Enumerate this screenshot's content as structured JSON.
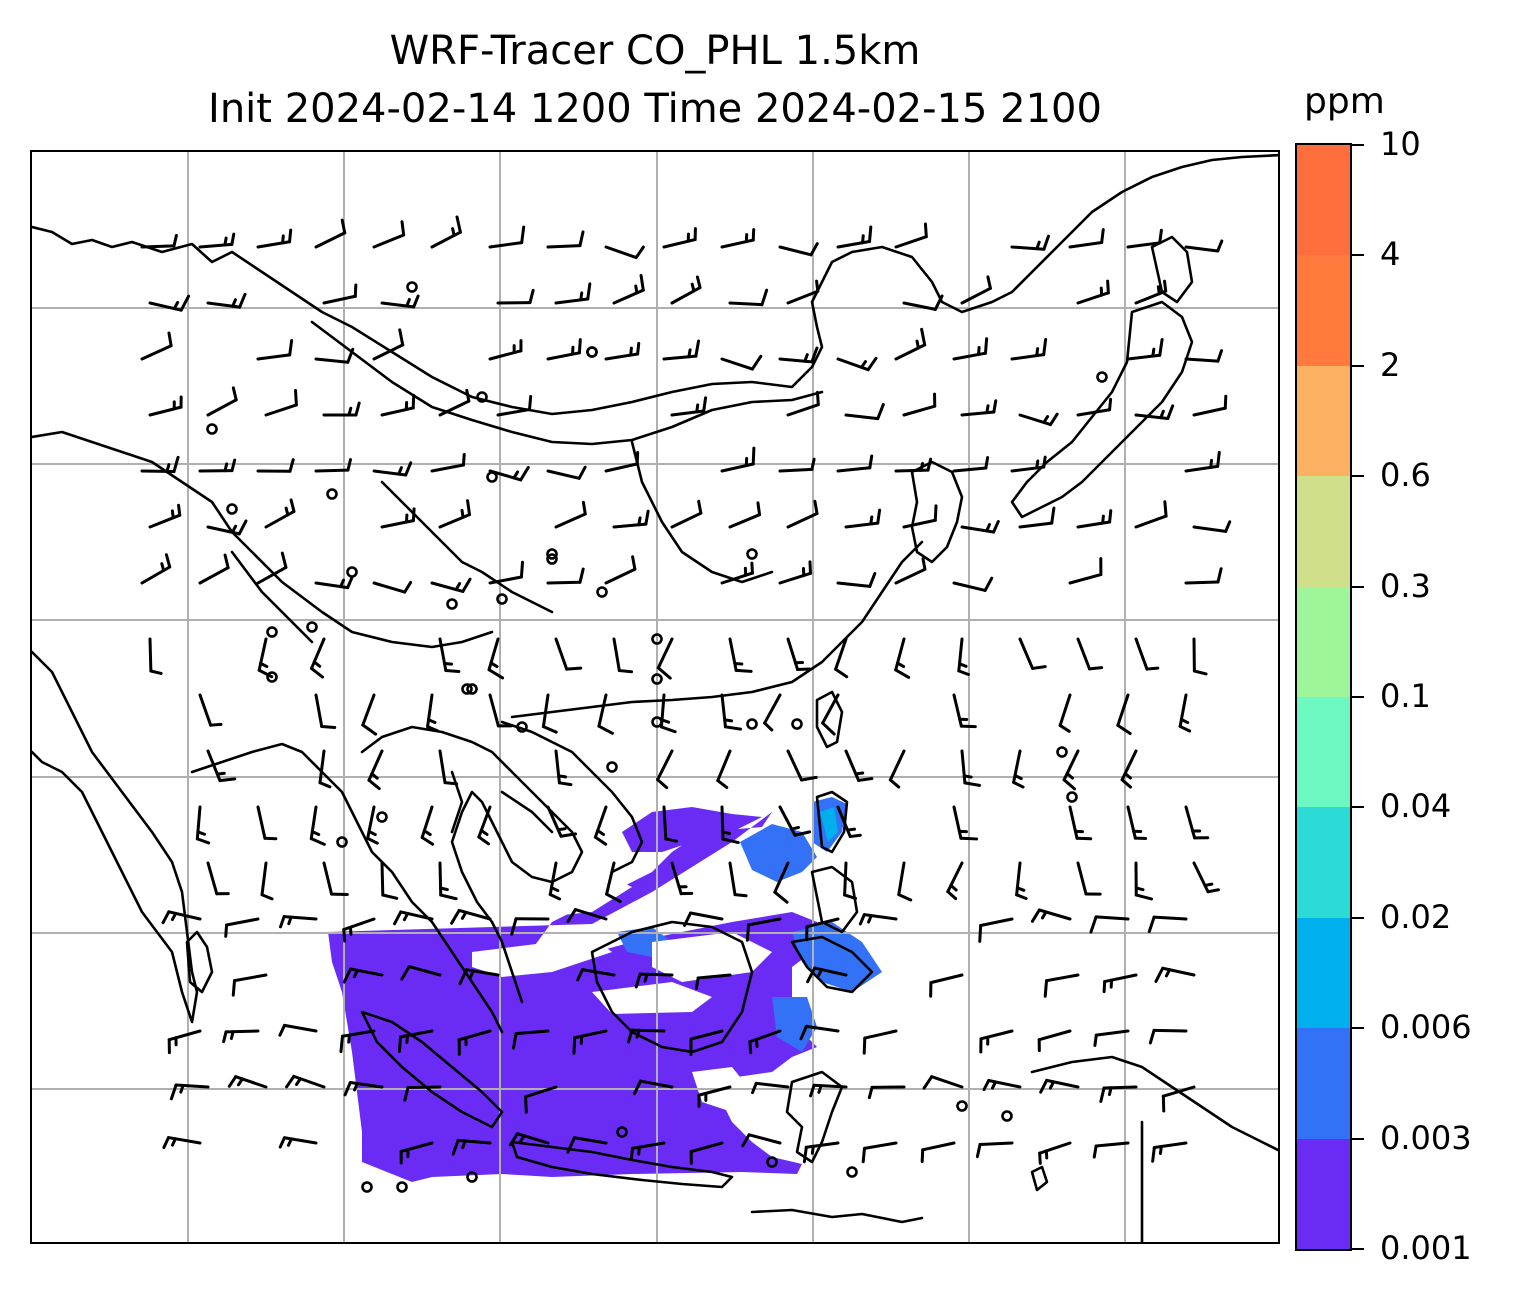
{
  "title": {
    "line1": "WRF-Tracer CO_PHL 1.5km",
    "line2": "Init 2024-02-14 1200 Time 2024-02-15 2100"
  },
  "colorbar": {
    "unit": "ppm",
    "levels": [
      "0.001",
      "0.003",
      "0.006",
      "0.02",
      "0.04",
      "0.1",
      "0.3",
      "0.6",
      "2",
      "4",
      "10"
    ],
    "colors": [
      "#6a2cf5",
      "#3372f6",
      "#00b0ec",
      "#2ddbd6",
      "#6cf8c0",
      "#9ff59a",
      "#d0e08a",
      "#fbb062",
      "#ff7a3c",
      "#ff6f3d",
      "#ff2d18"
    ]
  },
  "map": {
    "gridlines": "on",
    "gridline_color": "#b0b0b0",
    "coastline_color": "#000000",
    "plume_colors": {
      "low": "#6a2cf5",
      "mid": "#3372f6",
      "high": "#00b0ec"
    },
    "wind_barbs": "on"
  }
}
